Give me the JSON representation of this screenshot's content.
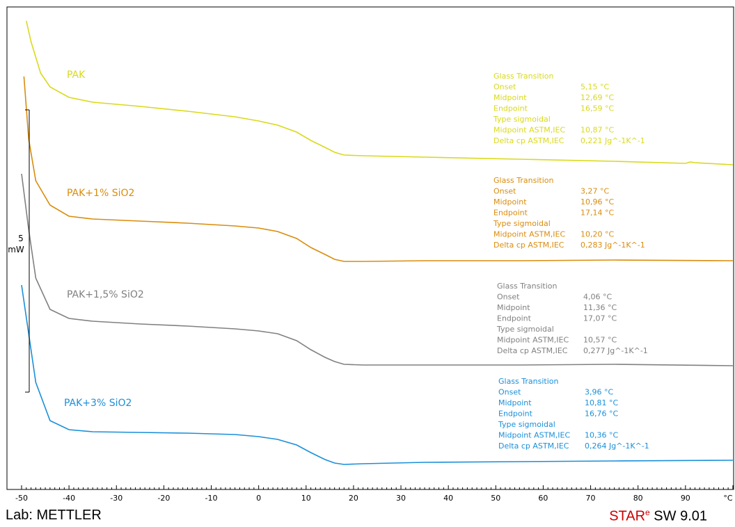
{
  "chart_data": {
    "type": "line",
    "xlim": [
      -50,
      100
    ],
    "x_ticks": [
      -50,
      -40,
      -30,
      -20,
      -10,
      0,
      10,
      20,
      30,
      40,
      50,
      60,
      70,
      80,
      90
    ],
    "x_unit": "°C",
    "scale_bar": {
      "value": "5",
      "unit": "mW"
    },
    "grid": false,
    "series": [
      {
        "name": "PAK",
        "color": "#d9d91a",
        "points": [
          [
            -49,
            30
          ],
          [
            -48,
            60
          ],
          [
            -46,
            105
          ],
          [
            -44,
            125
          ],
          [
            -40,
            140
          ],
          [
            -35,
            147
          ],
          [
            -25,
            153
          ],
          [
            -15,
            160
          ],
          [
            -5,
            168
          ],
          [
            0,
            174
          ],
          [
            4,
            180
          ],
          [
            8,
            190
          ],
          [
            11,
            202
          ],
          [
            14,
            212
          ],
          [
            16,
            219
          ],
          [
            18,
            223
          ],
          [
            22,
            224
          ],
          [
            35,
            226
          ],
          [
            55,
            229
          ],
          [
            75,
            232
          ],
          [
            90,
            235
          ],
          [
            91,
            233
          ],
          [
            92,
            234
          ],
          [
            100,
            237
          ]
        ],
        "annotation": {
          "title": "Glass Transition",
          "rows": [
            [
              "Onset",
              "5,15 °C"
            ],
            [
              "Midpoint",
              "12,69 °C"
            ],
            [
              "Endpoint",
              "16,59 °C"
            ],
            [
              "Type sigmoidal",
              ""
            ],
            [
              "Midpoint ASTM,IEC",
              "10,87 °C"
            ],
            [
              "Delta cp ASTM,IEC",
              "0,221 Jg^-1K^-1"
            ]
          ]
        }
      },
      {
        "name": "PAK+1% SiO2",
        "color": "#d98c0d",
        "points": [
          [
            -49.5,
            110
          ],
          [
            -48.5,
            200
          ],
          [
            -47,
            260
          ],
          [
            -44,
            295
          ],
          [
            -40,
            311
          ],
          [
            -35,
            315
          ],
          [
            -25,
            318
          ],
          [
            -15,
            321
          ],
          [
            -5,
            325
          ],
          [
            0,
            328
          ],
          [
            4,
            333
          ],
          [
            8,
            343
          ],
          [
            11,
            356
          ],
          [
            14,
            366
          ],
          [
            16,
            373
          ],
          [
            18,
            376
          ],
          [
            22,
            376
          ],
          [
            35,
            375
          ],
          [
            55,
            375
          ],
          [
            75,
            374
          ],
          [
            100,
            375
          ]
        ],
        "annotation": {
          "title": "Glass Transition",
          "rows": [
            [
              "Onset",
              "3,27 °C"
            ],
            [
              "Midpoint",
              "10,96 °C"
            ],
            [
              "Endpoint",
              "17,14 °C"
            ],
            [
              "Type sigmoidal",
              ""
            ],
            [
              "Midpoint ASTM,IEC",
              "10,20 °C"
            ],
            [
              "Delta cp ASTM,IEC",
              "0,283 Jg^-1K^-1"
            ]
          ]
        }
      },
      {
        "name": "PAK+1,5% SiO2",
        "color": "#808080",
        "points": [
          [
            -50,
            250
          ],
          [
            -48.5,
            330
          ],
          [
            -47,
            400
          ],
          [
            -44,
            445
          ],
          [
            -40,
            458
          ],
          [
            -35,
            462
          ],
          [
            -25,
            466
          ],
          [
            -15,
            469
          ],
          [
            -5,
            473
          ],
          [
            0,
            476
          ],
          [
            4,
            480
          ],
          [
            8,
            490
          ],
          [
            11,
            503
          ],
          [
            14,
            514
          ],
          [
            16,
            520
          ],
          [
            18,
            524
          ],
          [
            22,
            525
          ],
          [
            35,
            525
          ],
          [
            55,
            525
          ],
          [
            75,
            524
          ],
          [
            100,
            526
          ]
        ],
        "annotation": {
          "title": "Glass Transition",
          "rows": [
            [
              "Onset",
              "4,06 °C"
            ],
            [
              "Midpoint",
              "11,36 °C"
            ],
            [
              "Endpoint",
              "17,07 °C"
            ],
            [
              "Type sigmoidal",
              ""
            ],
            [
              "Midpoint ASTM,IEC",
              "10,57 °C"
            ],
            [
              "Delta cp ASTM,IEC",
              "0,277 Jg^-1K^-1"
            ]
          ]
        }
      },
      {
        "name": "PAK+3% SiO2",
        "color": "#1a8fd9",
        "points": [
          [
            -50,
            410
          ],
          [
            -48.5,
            480
          ],
          [
            -47,
            550
          ],
          [
            -44,
            605
          ],
          [
            -40,
            618
          ],
          [
            -35,
            621
          ],
          [
            -25,
            622
          ],
          [
            -15,
            623
          ],
          [
            -5,
            625
          ],
          [
            0,
            628
          ],
          [
            4,
            632
          ],
          [
            8,
            640
          ],
          [
            11,
            651
          ],
          [
            14,
            661
          ],
          [
            16,
            666
          ],
          [
            18,
            668
          ],
          [
            22,
            667
          ],
          [
            35,
            665
          ],
          [
            55,
            664
          ],
          [
            75,
            663
          ],
          [
            100,
            662
          ]
        ],
        "annotation": {
          "title": "Glass Transition",
          "rows": [
            [
              "Onset",
              "3,96 °C"
            ],
            [
              "Midpoint",
              "10,81 °C"
            ],
            [
              "Endpoint",
              "16,76 °C"
            ],
            [
              "Type sigmoidal",
              ""
            ],
            [
              "Midpoint ASTM,IEC",
              "10,36 °C"
            ],
            [
              "Delta cp ASTM,IEC",
              "0,264 Jg^-1K^-1"
            ]
          ]
        }
      }
    ]
  },
  "footer": {
    "lab": "Lab: METTLER",
    "software_brand": "STAR",
    "software_sup": "e",
    "software_version": " SW 9.01"
  }
}
